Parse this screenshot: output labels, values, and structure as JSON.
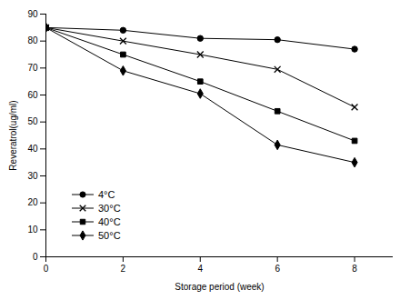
{
  "chart_data": {
    "type": "line",
    "x_label": "Storage period (week)",
    "y_label": "Reveratrol(ug/ml)",
    "x": [
      0,
      2,
      4,
      6,
      8
    ],
    "xlim": [
      0,
      9
    ],
    "xticks": [
      0,
      2,
      4,
      6,
      8
    ],
    "ylim": [
      0,
      90
    ],
    "yticks": [
      0,
      10,
      20,
      30,
      40,
      50,
      60,
      70,
      80,
      90
    ],
    "grid": false,
    "legend": "bottom-left",
    "series": [
      {
        "name": "4°C",
        "color": "#000000",
        "marker": "circle",
        "values": [
          85,
          84,
          81,
          80.5,
          77
        ]
      },
      {
        "name": "30°C",
        "color": "#000000",
        "marker": "x",
        "values": [
          85,
          80,
          75,
          69.5,
          55.5
        ]
      },
      {
        "name": "40°C",
        "color": "#000000",
        "marker": "square",
        "values": [
          85,
          75,
          65,
          54,
          43
        ]
      },
      {
        "name": "50°C",
        "color": "#000000",
        "marker": "diamond",
        "values": [
          85,
          69,
          60.5,
          41.5,
          35
        ]
      }
    ]
  }
}
